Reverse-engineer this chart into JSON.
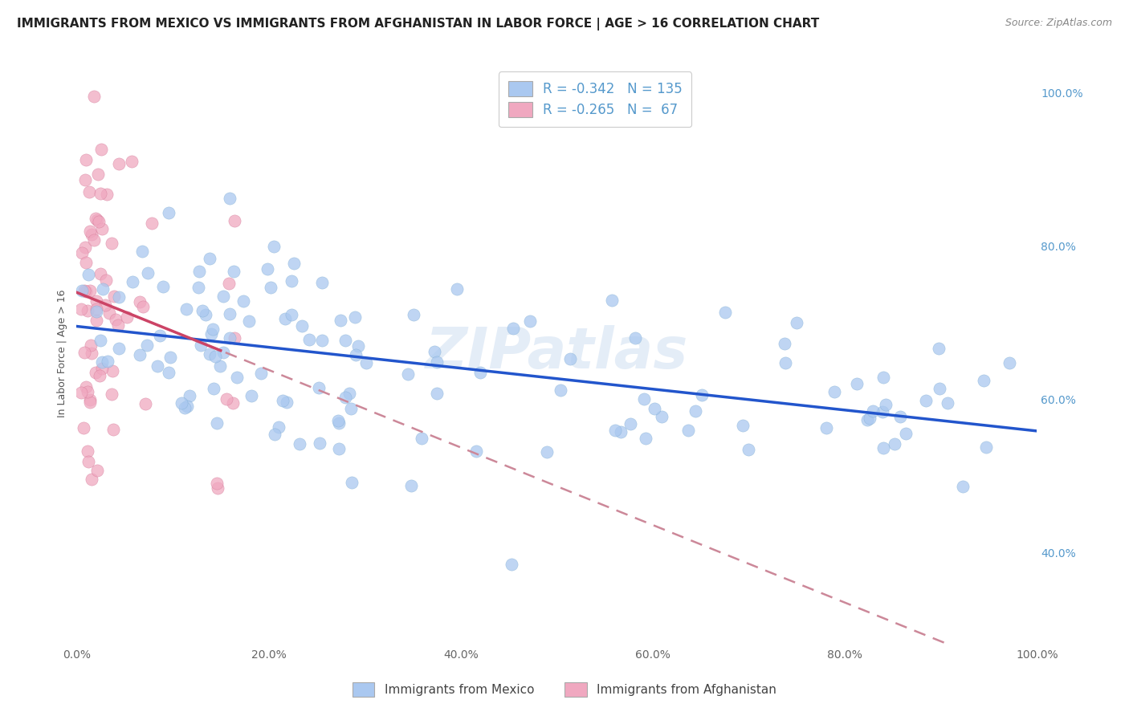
{
  "title": "IMMIGRANTS FROM MEXICO VS IMMIGRANTS FROM AFGHANISTAN IN LABOR FORCE | AGE > 16 CORRELATION CHART",
  "source": "Source: ZipAtlas.com",
  "ylabel": "In Labor Force | Age > 16",
  "mexico_color": "#aac8f0",
  "mexico_edge_color": "#7aaad0",
  "afghanistan_color": "#f0a8c0",
  "afghanistan_edge_color": "#d07090",
  "mexico_line_color": "#2255cc",
  "afghanistan_line_color": "#cc4466",
  "afghanistan_dash_color": "#cc8899",
  "mexico_R": -0.342,
  "mexico_N": 135,
  "afghanistan_R": -0.265,
  "afghanistan_N": 67,
  "watermark": "ZIPatlas",
  "xlim": [
    0.0,
    1.0
  ],
  "ylim": [
    0.28,
    1.04
  ],
  "x_ticks": [
    0.0,
    0.2,
    0.4,
    0.6,
    0.8,
    1.0
  ],
  "x_tick_labels": [
    "0.0%",
    "20.0%",
    "40.0%",
    "60.0%",
    "80.0%",
    "100.0%"
  ],
  "y_ticks": [
    0.4,
    0.6,
    0.8,
    1.0
  ],
  "y_tick_labels": [
    "40.0%",
    "60.0%",
    "80.0%",
    "100.0%"
  ],
  "grid_color": "#dddddd",
  "tick_color": "#5599cc",
  "title_fontsize": 11,
  "axis_fontsize": 10,
  "legend_fontsize": 12,
  "mexico_trend_start_y": 0.695,
  "mexico_trend_end_y": 0.555,
  "afghanistan_trend_start_y": 0.718,
  "afghanistan_trend_end_y": 0.21
}
